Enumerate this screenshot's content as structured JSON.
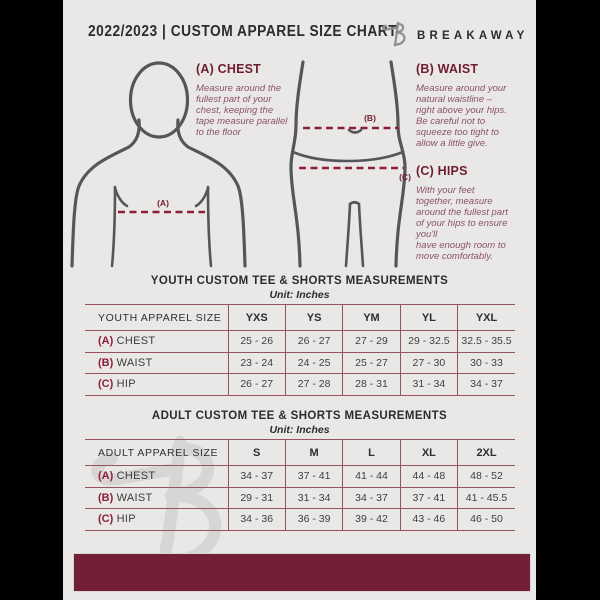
{
  "header": {
    "title": "2022/2023  |  CUSTOM APPAREL SIZE CHART",
    "brand": "BREAKAWAY"
  },
  "figure": {
    "chest_label": "(A)",
    "waist_label": "(B)",
    "hips_label": "(C)"
  },
  "instructions": [
    {
      "heading": "(A) CHEST",
      "body": "Measure around the\nfullest part of your\nchest, keeping the\ntape measure parallel\nto the floor"
    },
    {
      "heading": "(B) WAIST",
      "body": "Measure around your\nnatural waistline –\nright above your hips.\nBe careful not to\nsqueeze too tight to\nallow a little give."
    },
    {
      "heading": "(C) HIPS",
      "body": "With your feet\ntogether, measure\naround the fullest part\nof your hips to ensure\nyou'll\nhave enough room to\nmove comfortably."
    }
  ],
  "youth": {
    "title": "YOUTH CUSTOM TEE & SHORTS MEASUREMENTS",
    "unit": "Unit: Inches",
    "header": [
      "YOUTH APPAREL SIZE",
      "YXS",
      "YS",
      "YM",
      "YL",
      "YXL"
    ],
    "rows": [
      {
        "key": "(A)",
        "label": "CHEST",
        "values": [
          "25 - 26",
          "26 - 27",
          "27 - 29",
          "29 - 32.5",
          "32.5 - 35.5"
        ]
      },
      {
        "key": "(B)",
        "label": "WAIST",
        "values": [
          "23 - 24",
          "24 - 25",
          "25 - 27",
          "27 - 30",
          "30 - 33"
        ]
      },
      {
        "key": "(C)",
        "label": "HIP",
        "values": [
          "26 - 27",
          "27 - 28",
          "28 - 31",
          "31 - 34",
          "34 - 37"
        ]
      }
    ]
  },
  "adult": {
    "title": "ADULT CUSTOM TEE & SHORTS MEASUREMENTS",
    "unit": "Unit: Inches",
    "header": [
      "ADULT APPAREL SIZE",
      "S",
      "M",
      "L",
      "XL",
      "2XL"
    ],
    "rows": [
      {
        "key": "(A)",
        "label": "CHEST",
        "values": [
          "34 - 37",
          "37 - 41",
          "41 - 44",
          "44 - 48",
          "48 - 52"
        ]
      },
      {
        "key": "(B)",
        "label": "WAIST",
        "values": [
          "29 - 31",
          "31 - 34",
          "34 - 37",
          "37 - 41",
          "41 - 45.5"
        ]
      },
      {
        "key": "(C)",
        "label": "HIP",
        "values": [
          "34 - 36",
          "36 - 39",
          "39 - 42",
          "43 - 46",
          "46 - 50"
        ]
      }
    ]
  },
  "colors": {
    "accent_maroon": "#6e1d33",
    "footer_maroon": "#731f37",
    "table_line": "#96525f",
    "page_background": "#e9e8e6"
  }
}
